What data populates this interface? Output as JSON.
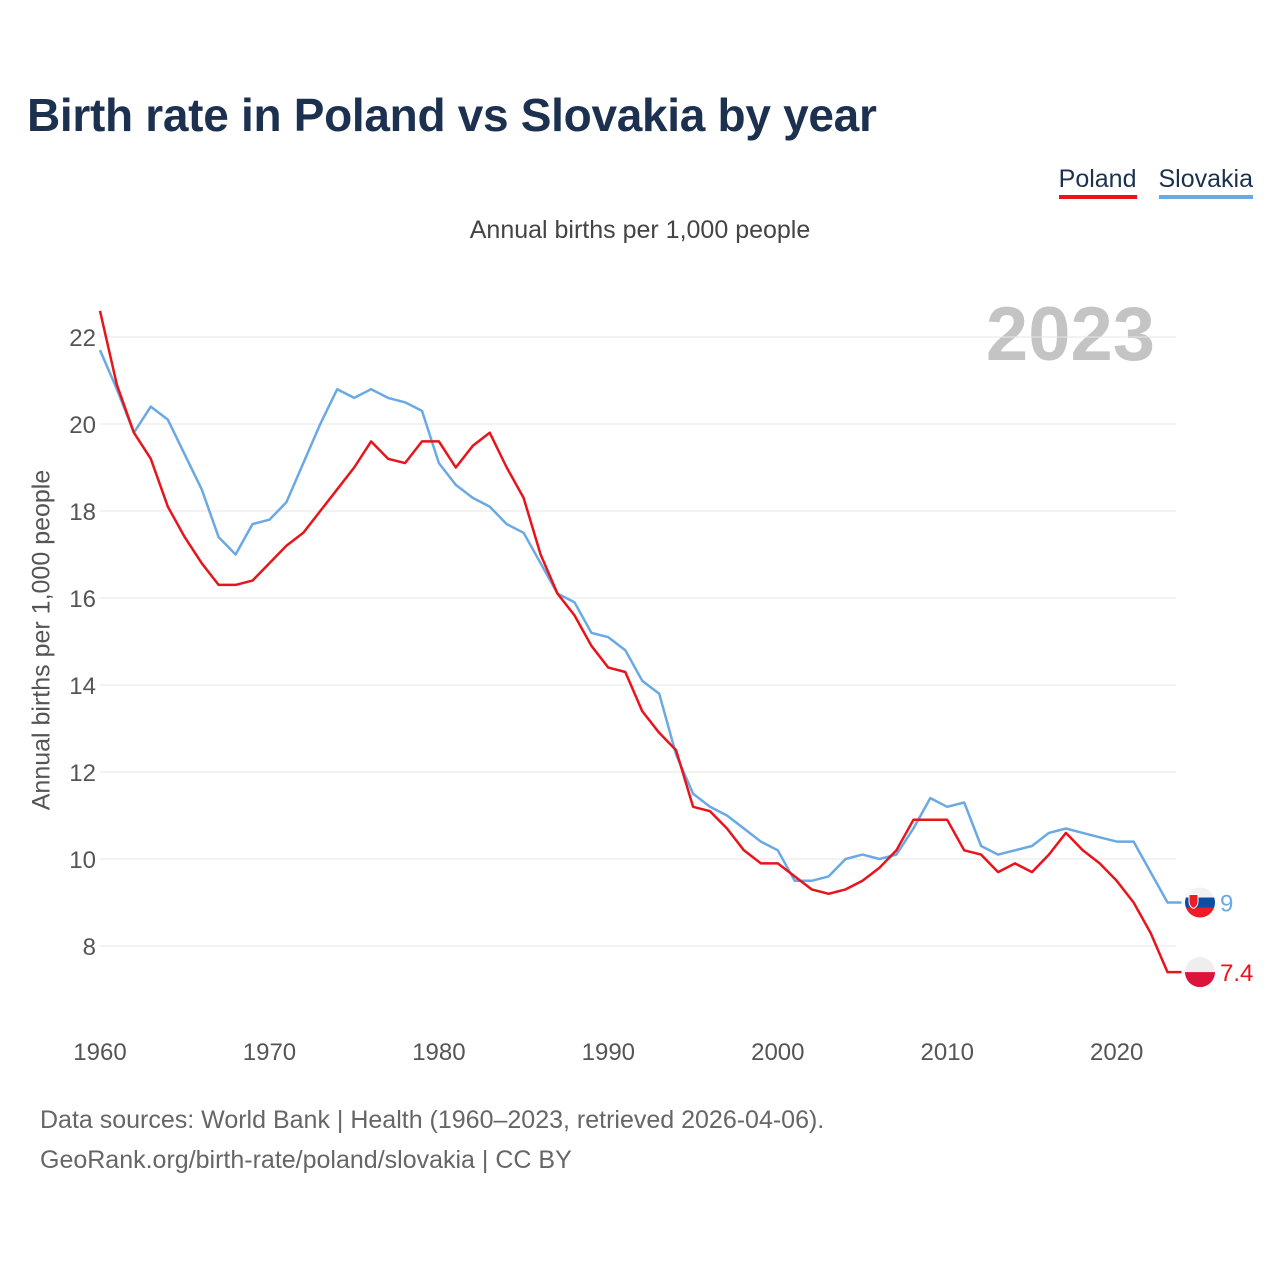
{
  "title": "Birth rate in Poland vs Slovakia by year",
  "subtitle": "Annual births per 1,000 people",
  "year_watermark": "2023",
  "footer": {
    "line1": "Data sources: World Bank | Health (1960–2023, retrieved 2026-04-06).",
    "line2": "GeoRank.org/birth-rate/poland/slovakia | CC BY"
  },
  "colors": {
    "poland": "#e8141b",
    "slovakia": "#6aa9e4",
    "grid": "#e6e6e6",
    "text": "#555555"
  },
  "chart_data": {
    "type": "line",
    "title": "Birth rate in Poland vs Slovakia by year",
    "ylabel": "Annual births per 1,000 people",
    "xlabel": "",
    "xlim": [
      1960,
      2023
    ],
    "ylim": [
      7,
      22.5
    ],
    "xticks": [
      1960,
      1970,
      1980,
      1990,
      2000,
      2010,
      2020
    ],
    "yticks": [
      8,
      10,
      12,
      14,
      16,
      18,
      20,
      22
    ],
    "legend_position": "top-right",
    "x": [
      1960,
      1961,
      1962,
      1963,
      1964,
      1965,
      1966,
      1967,
      1968,
      1969,
      1970,
      1971,
      1972,
      1973,
      1974,
      1975,
      1976,
      1977,
      1978,
      1979,
      1980,
      1981,
      1982,
      1983,
      1984,
      1985,
      1986,
      1987,
      1988,
      1989,
      1990,
      1991,
      1992,
      1993,
      1994,
      1995,
      1996,
      1997,
      1998,
      1999,
      2000,
      2001,
      2002,
      2003,
      2004,
      2005,
      2006,
      2007,
      2008,
      2009,
      2010,
      2011,
      2012,
      2013,
      2014,
      2015,
      2016,
      2017,
      2018,
      2019,
      2020,
      2021,
      2022,
      2023
    ],
    "series": [
      {
        "name": "Poland",
        "flag": "poland-flag-icon",
        "last_label": "7.4",
        "values": [
          22.6,
          20.9,
          19.8,
          19.2,
          18.1,
          17.4,
          16.8,
          16.3,
          16.3,
          16.4,
          16.8,
          17.2,
          17.5,
          18.0,
          18.5,
          19.0,
          19.6,
          19.2,
          19.1,
          19.6,
          19.6,
          19.0,
          19.5,
          19.8,
          19.0,
          18.3,
          17.0,
          16.1,
          15.6,
          14.9,
          14.4,
          14.3,
          13.4,
          12.9,
          12.5,
          11.2,
          11.1,
          10.7,
          10.2,
          9.9,
          9.9,
          9.6,
          9.3,
          9.2,
          9.3,
          9.5,
          9.8,
          10.2,
          10.9,
          10.9,
          10.9,
          10.2,
          10.1,
          9.7,
          9.9,
          9.7,
          10.1,
          10.6,
          10.2,
          9.9,
          9.5,
          9.0,
          8.3,
          7.4
        ]
      },
      {
        "name": "Slovakia",
        "flag": "slovakia-flag-icon",
        "last_label": "9",
        "values": [
          21.7,
          20.8,
          19.8,
          20.4,
          20.1,
          19.3,
          18.5,
          17.4,
          17.0,
          17.7,
          17.8,
          18.2,
          19.1,
          20.0,
          20.8,
          20.6,
          20.8,
          20.6,
          20.5,
          20.3,
          19.1,
          18.6,
          18.3,
          18.1,
          17.7,
          17.5,
          16.8,
          16.1,
          15.9,
          15.2,
          15.1,
          14.8,
          14.1,
          13.8,
          12.4,
          11.5,
          11.2,
          11.0,
          10.7,
          10.4,
          10.2,
          9.5,
          9.5,
          9.6,
          10.0,
          10.1,
          10.0,
          10.1,
          10.7,
          11.4,
          11.2,
          11.3,
          10.3,
          10.1,
          10.2,
          10.3,
          10.6,
          10.7,
          10.6,
          10.5,
          10.4,
          10.4,
          9.7,
          9.0
        ]
      }
    ]
  }
}
